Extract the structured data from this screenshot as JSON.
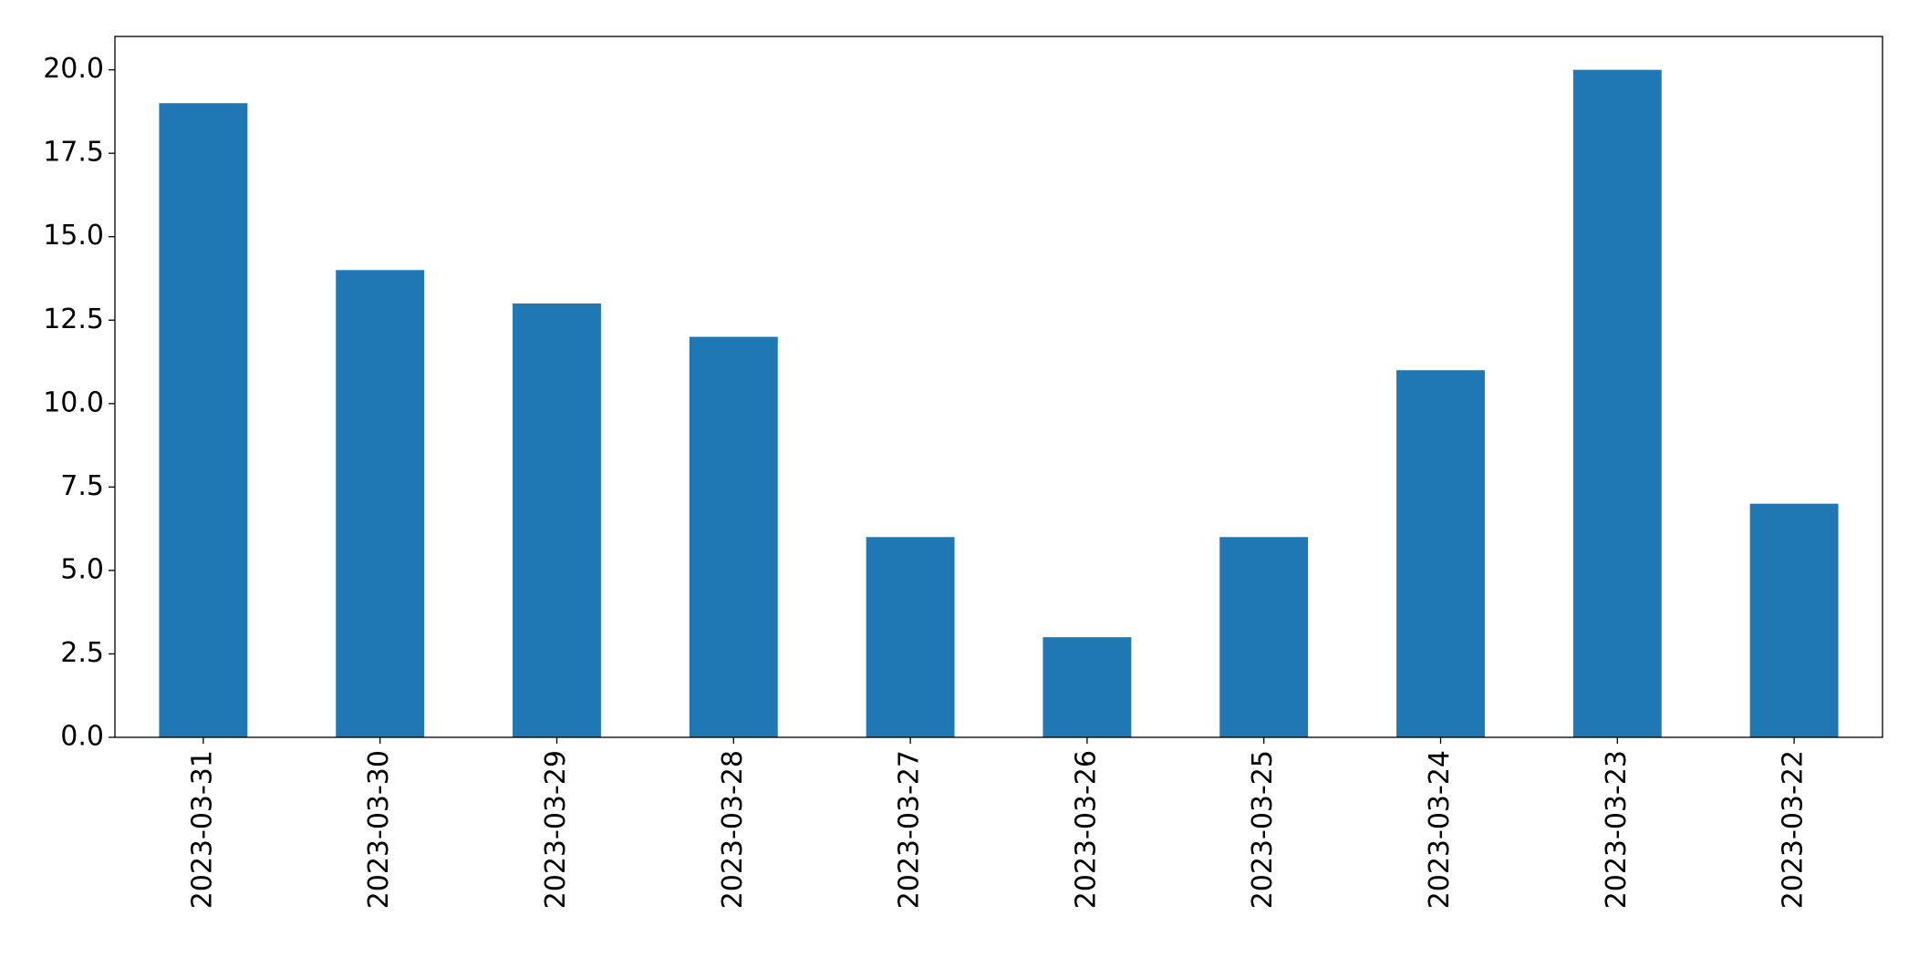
{
  "chart_data": {
    "type": "bar",
    "categories": [
      "2023-03-31",
      "2023-03-30",
      "2023-03-29",
      "2023-03-28",
      "2023-03-27",
      "2023-03-26",
      "2023-03-25",
      "2023-03-24",
      "2023-03-23",
      "2023-03-22"
    ],
    "values": [
      19,
      14,
      13,
      12,
      6,
      3,
      6,
      11,
      20,
      7
    ],
    "color": "#1f77b4",
    "ylim": [
      0,
      21
    ],
    "yticks": [
      {
        "value": 0,
        "label": "0.0"
      },
      {
        "value": 2.5,
        "label": "2.5"
      },
      {
        "value": 5,
        "label": "5.0"
      },
      {
        "value": 7.5,
        "label": "7.5"
      },
      {
        "value": 10,
        "label": "10.0"
      },
      {
        "value": 12.5,
        "label": "12.5"
      },
      {
        "value": 15,
        "label": "15.0"
      },
      {
        "value": 17.5,
        "label": "17.5"
      },
      {
        "value": 20,
        "label": "20.0"
      }
    ],
    "grid": false
  }
}
